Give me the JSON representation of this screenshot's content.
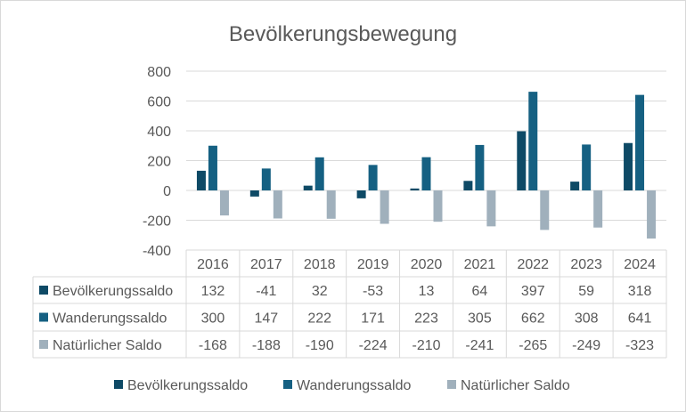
{
  "chart_data": {
    "type": "bar",
    "title": "Bevölkerungsbewegung",
    "categories": [
      "2016",
      "2017",
      "2018",
      "2019",
      "2020",
      "2021",
      "2022",
      "2023",
      "2024"
    ],
    "series": [
      {
        "name": "Bevölkerungssaldo",
        "color": "#0e4a66",
        "values": [
          132,
          -41,
          32,
          -53,
          13,
          64,
          397,
          59,
          318
        ]
      },
      {
        "name": "Wanderungssaldo",
        "color": "#156082",
        "values": [
          300,
          147,
          222,
          171,
          223,
          305,
          662,
          308,
          641
        ]
      },
      {
        "name": "Natürlicher Saldo",
        "color": "#a0b0bc",
        "values": [
          -168,
          -188,
          -190,
          -224,
          -210,
          -241,
          -265,
          -249,
          -323
        ]
      }
    ],
    "ylim": [
      -400,
      800
    ],
    "yticks": [
      "800",
      "600",
      "400",
      "200",
      "0",
      "-200",
      "-400"
    ],
    "grid": true,
    "data_table": true,
    "legend_position": "bottom"
  }
}
